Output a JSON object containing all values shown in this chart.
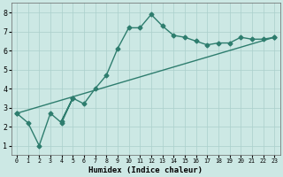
{
  "line1_x": [
    0,
    1,
    2,
    3,
    4,
    5,
    4,
    5,
    6,
    7,
    8,
    9,
    10,
    11,
    12,
    13,
    14,
    15,
    16,
    17,
    18,
    19,
    20,
    21,
    22,
    23
  ],
  "line1_y": [
    2.7,
    2.2,
    1.0,
    2.7,
    2.2,
    3.5,
    2.3,
    3.5,
    3.2,
    4.0,
    4.7,
    6.1,
    7.2,
    7.2,
    7.9,
    7.3,
    6.8,
    6.7,
    6.5,
    6.3,
    6.4,
    6.4,
    6.7,
    6.6,
    6.6,
    6.7
  ],
  "line2_x": [
    0,
    23
  ],
  "line2_y": [
    2.7,
    6.7
  ],
  "color": "#2e7d6e",
  "bg_color": "#cce8e4",
  "grid_color": "#aacfcb",
  "xlabel": "Humidex (Indice chaleur)",
  "xlim": [
    -0.5,
    23.5
  ],
  "ylim": [
    0.5,
    8.5
  ],
  "yticks": [
    1,
    2,
    3,
    4,
    5,
    6,
    7,
    8
  ],
  "xtick_vals": [
    0,
    1,
    2,
    3,
    4,
    5,
    6,
    7,
    8,
    9,
    10,
    11,
    12,
    13,
    14,
    15,
    16,
    17,
    18,
    19,
    20,
    21,
    22,
    23
  ],
  "xtick_labels": [
    "0",
    "1",
    "2",
    "3",
    "4",
    "5",
    "6",
    "7",
    "8",
    "9",
    "10",
    "11",
    "12",
    "13",
    "14",
    "15",
    "16",
    "17",
    "18",
    "19",
    "20",
    "21",
    "22",
    "23"
  ],
  "marker": "D",
  "markersize": 2.5,
  "linewidth": 1.0
}
